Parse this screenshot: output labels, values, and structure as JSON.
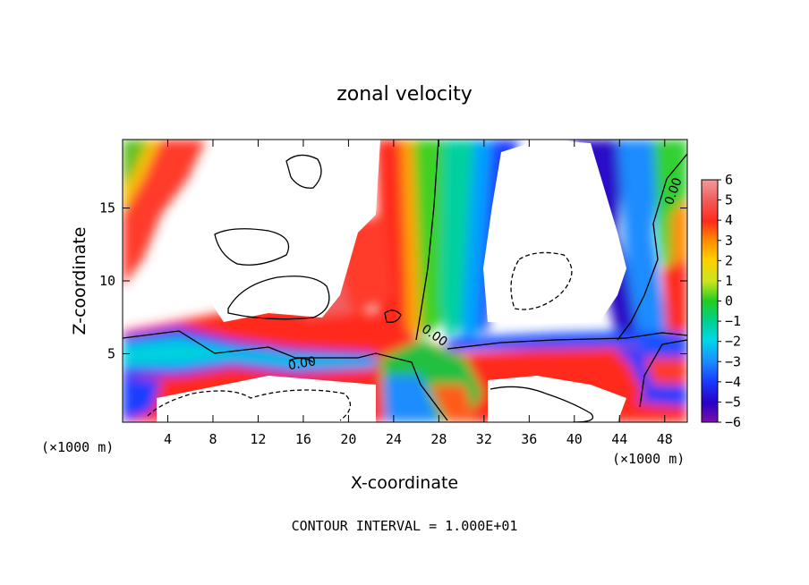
{
  "chart_data": {
    "type": "heatmap",
    "title": "zonal velocity",
    "xlabel": "X-coordinate",
    "ylabel": "Z-coordinate",
    "x_unit_left": "(×1000 m)",
    "x_unit_right": "(×1000 m)",
    "footnote": "CONTOUR INTERVAL = 1.000E+01",
    "xlim": [
      0,
      50
    ],
    "ylim": [
      0.3,
      19.7
    ],
    "x_ticks": [
      4,
      8,
      12,
      16,
      20,
      24,
      28,
      32,
      36,
      40,
      44,
      48
    ],
    "y_ticks": [
      5,
      10,
      15
    ],
    "colorbar": {
      "ticks": [
        6,
        5,
        4,
        3,
        2,
        1,
        0,
        -1,
        -2,
        -3,
        -4,
        -5,
        -6
      ],
      "range": [
        -6,
        6
      ],
      "note": "values beyond range rendered white (masked)"
    },
    "contour_label": "0.00",
    "colors": {
      "masked": "#ffffff",
      "frame": "#000000"
    }
  }
}
